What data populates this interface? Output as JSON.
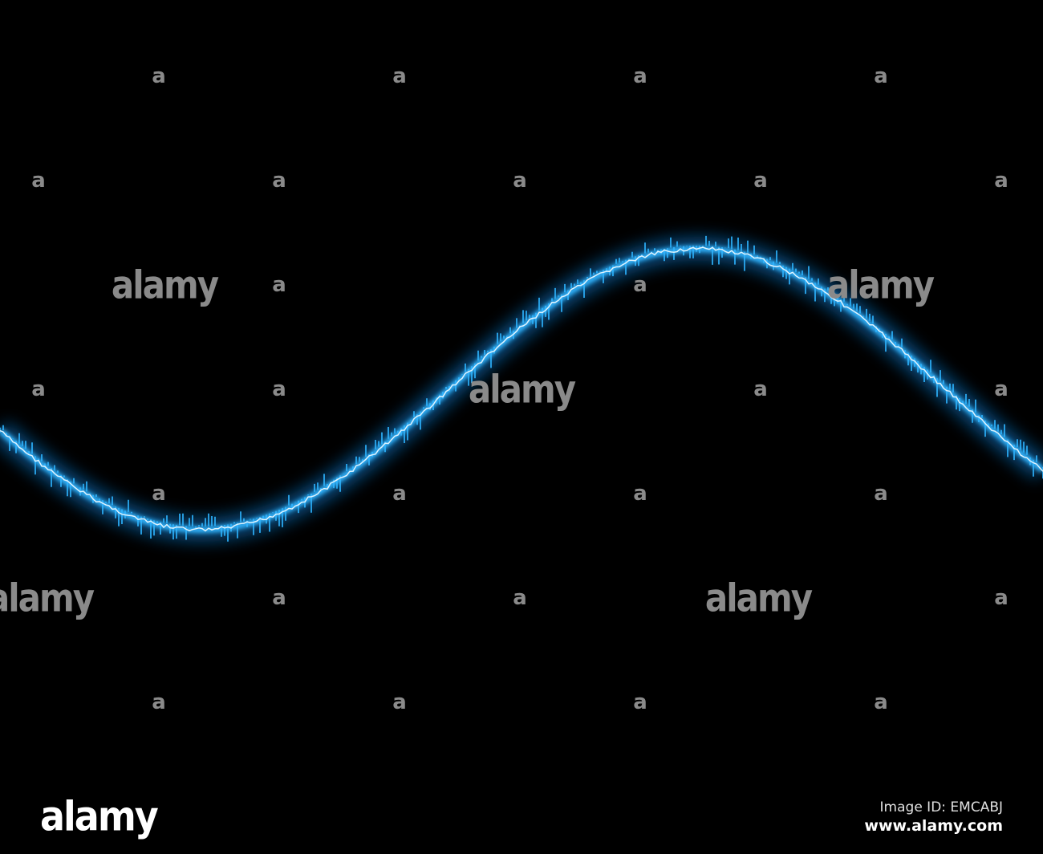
{
  "image": {
    "subject": "glowing blue sine wave on black background",
    "wave_color": "#33b5ff",
    "glow_color": "#0a7fd6",
    "background": "#000000"
  },
  "watermark": {
    "letter": "a",
    "word": "alamy"
  },
  "footer": {
    "logo": "alamy",
    "image_id": "Image ID: EMCABJ",
    "url": "www.alamy.com"
  }
}
